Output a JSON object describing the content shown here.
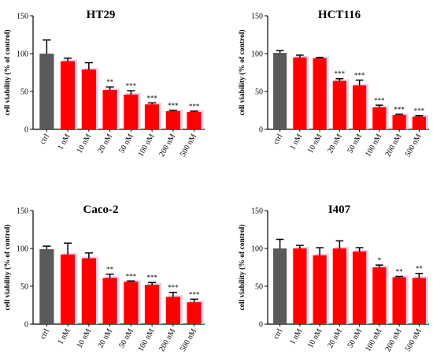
{
  "colors": {
    "ctrl": "#5a5a5a",
    "treated": "#ff0000",
    "axis": "#000000",
    "errorbar": "#000000",
    "shadow": "#f2c8e4"
  },
  "chart_data": [
    {
      "type": "bar",
      "title": "HT29",
      "ylabel": "cell viability (% of control)",
      "ylim": [
        0,
        150
      ],
      "yticks": [
        "0",
        "50",
        "100",
        "150"
      ],
      "categories": [
        "ctrl",
        "1 nM",
        "10 nM",
        "20 nM",
        "50 nM",
        "100 nM",
        "200 nM",
        "500 nM"
      ],
      "values": [
        100,
        90,
        79,
        52,
        46,
        33,
        24,
        23
      ],
      "errors": [
        18,
        4,
        9,
        4,
        5,
        2,
        1,
        1
      ],
      "significance": [
        "",
        "",
        "",
        "**",
        "***",
        "***",
        "***",
        "***"
      ],
      "grid": false,
      "legend": "none"
    },
    {
      "type": "bar",
      "title": "HCT116",
      "ylabel": "cell viability (% of control)",
      "ylim": [
        0,
        150
      ],
      "yticks": [
        "0",
        "50",
        "100",
        "150"
      ],
      "categories": [
        "ctrl",
        "1 nM",
        "10 nM",
        "20 nM",
        "50 nM",
        "100 nM",
        "200 nM",
        "500 nM"
      ],
      "values": [
        101,
        95,
        94,
        64,
        58,
        29,
        19,
        17
      ],
      "errors": [
        3,
        3,
        1,
        3,
        7,
        3,
        1,
        1
      ],
      "significance": [
        "",
        "",
        "",
        "***",
        "***",
        "***",
        "***",
        "***"
      ],
      "grid": false,
      "legend": "none"
    },
    {
      "type": "bar",
      "title": "Caco-2",
      "ylabel": "cell viability (% of control)",
      "ylim": [
        0,
        150
      ],
      "yticks": [
        "0",
        "50",
        "100",
        "150"
      ],
      "categories": [
        "ctrl",
        "1 nM",
        "10 nM",
        "20 nM",
        "50 nM",
        "100 nM",
        "200 nM",
        "500 nM"
      ],
      "values": [
        99,
        92,
        87,
        61,
        56,
        52,
        36,
        29
      ],
      "errors": [
        4,
        15,
        7,
        5,
        1,
        3,
        6,
        4
      ],
      "significance": [
        "",
        "",
        "",
        "**",
        "***",
        "***",
        "***",
        "***"
      ],
      "grid": false,
      "legend": "none"
    },
    {
      "type": "bar",
      "title": "I407",
      "ylabel": "cell viability (% of control)",
      "ylim": [
        0,
        150
      ],
      "yticks": [
        "0",
        "50",
        "100",
        "150"
      ],
      "categories": [
        "ctrl",
        "1 nM",
        "10 nM",
        "20 nM",
        "50 nM",
        "100 nM",
        "200 nM",
        "500 nM"
      ],
      "values": [
        100,
        100,
        91,
        100,
        96,
        75,
        62,
        61
      ],
      "errors": [
        12,
        4,
        10,
        10,
        5,
        3,
        1,
        6
      ],
      "significance": [
        "",
        "",
        "",
        "",
        "",
        "*",
        "**",
        "**"
      ],
      "grid": false,
      "legend": "none"
    }
  ]
}
